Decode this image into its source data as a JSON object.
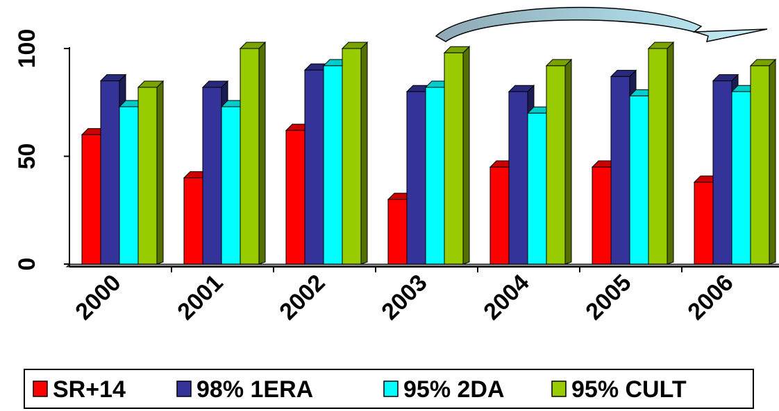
{
  "chart_data": {
    "type": "bar",
    "categories": [
      "2000",
      "2001",
      "2002",
      "2003",
      "2004",
      "2005",
      "2006"
    ],
    "series": [
      {
        "name": "SR+14",
        "color": "#ff0000",
        "values": [
          60,
          40,
          62,
          30,
          45,
          45,
          38
        ]
      },
      {
        "name": "98% 1ERA",
        "color": "#333399",
        "values": [
          85,
          82,
          90,
          80,
          80,
          87,
          85
        ]
      },
      {
        "name": "95% 2DA",
        "color": "#00ffff",
        "values": [
          73,
          73,
          92,
          82,
          70,
          78,
          80
        ]
      },
      {
        "name": "95% CULT",
        "color": "#99cc00",
        "values": [
          82,
          100,
          100,
          98,
          92,
          100,
          92
        ]
      }
    ],
    "y_ticks": [
      "0",
      "50",
      "100"
    ],
    "ylim": [
      0,
      100
    ],
    "three_d": true,
    "legend_position": "bottom",
    "decoration": "curved-arrow-top-right"
  }
}
